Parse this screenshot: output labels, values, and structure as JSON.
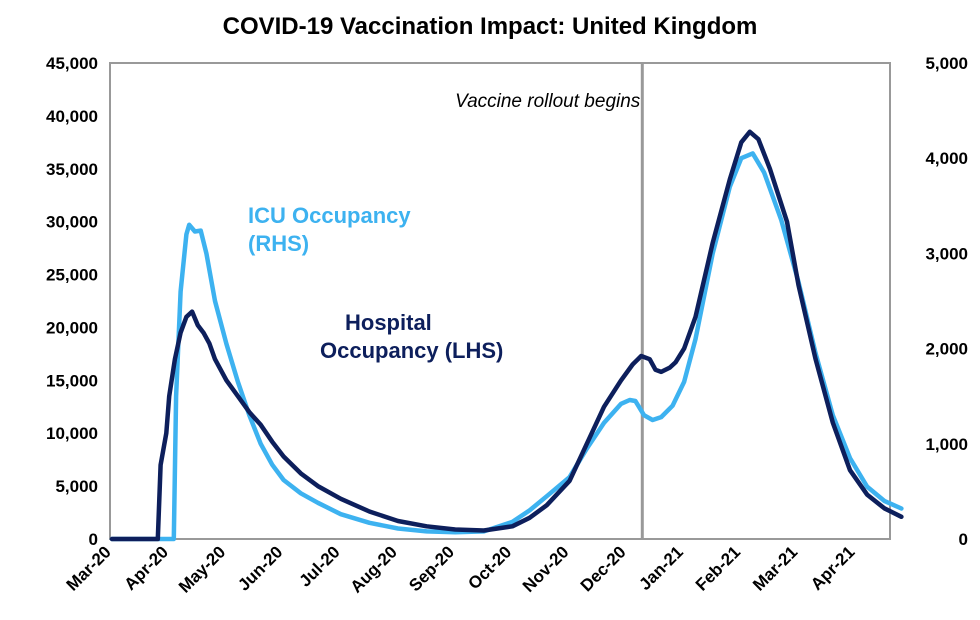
{
  "chart_data": {
    "type": "line",
    "title": "COVID-19 Vaccination Impact: United Kingdom",
    "x_ticks": [
      "Mar-20",
      "Apr-20",
      "May-20",
      "Jun-20",
      "Jul-20",
      "Aug-20",
      "Sep-20",
      "Oct-20",
      "Nov-20",
      "Dec-20",
      "Jan-21",
      "Feb-21",
      "Mar-21",
      "Apr-21"
    ],
    "x_range": [
      0,
      13.6
    ],
    "y_left": {
      "min": 0,
      "max": 45000,
      "ticks": [
        "0",
        "5,000",
        "10,000",
        "15,000",
        "20,000",
        "25,000",
        "30,000",
        "35,000",
        "40,000",
        "45,000"
      ]
    },
    "y_right": {
      "min": 0,
      "max": 5000,
      "ticks": [
        "0",
        "1,000",
        "2,000",
        "3,000",
        "4,000",
        "5,000"
      ]
    },
    "grid": false,
    "annotation": {
      "text": "Vaccine rollout begins",
      "x": 9.27
    },
    "series": [
      {
        "name": "Hospital Occupancy (LHS)",
        "label_lines": [
          "Hospital",
          "Occupancy (LHS)"
        ],
        "axis": "left",
        "color": "#0d1f5c",
        "points": [
          [
            0,
            0
          ],
          [
            0.8,
            0
          ],
          [
            0.85,
            7000
          ],
          [
            0.95,
            10000
          ],
          [
            1.0,
            13500
          ],
          [
            1.1,
            17000
          ],
          [
            1.2,
            19500
          ],
          [
            1.3,
            21000
          ],
          [
            1.4,
            21500
          ],
          [
            1.5,
            20200
          ],
          [
            1.6,
            19500
          ],
          [
            1.7,
            18500
          ],
          [
            1.8,
            17000
          ],
          [
            2.0,
            15000
          ],
          [
            2.2,
            13500
          ],
          [
            2.4,
            12000
          ],
          [
            2.6,
            10800
          ],
          [
            2.8,
            9200
          ],
          [
            3.0,
            7800
          ],
          [
            3.3,
            6200
          ],
          [
            3.6,
            5000
          ],
          [
            4.0,
            3800
          ],
          [
            4.5,
            2600
          ],
          [
            5.0,
            1700
          ],
          [
            5.5,
            1200
          ],
          [
            6.0,
            900
          ],
          [
            6.5,
            800
          ],
          [
            7.0,
            1200
          ],
          [
            7.3,
            2000
          ],
          [
            7.6,
            3200
          ],
          [
            8.0,
            5500
          ],
          [
            8.3,
            9000
          ],
          [
            8.6,
            12500
          ],
          [
            8.9,
            15000
          ],
          [
            9.1,
            16500
          ],
          [
            9.25,
            17300
          ],
          [
            9.4,
            17000
          ],
          [
            9.5,
            16000
          ],
          [
            9.6,
            15800
          ],
          [
            9.75,
            16200
          ],
          [
            9.85,
            16700
          ],
          [
            10.0,
            18000
          ],
          [
            10.2,
            21000
          ],
          [
            10.5,
            28000
          ],
          [
            10.8,
            34000
          ],
          [
            11.0,
            37500
          ],
          [
            11.15,
            38500
          ],
          [
            11.3,
            37800
          ],
          [
            11.5,
            35000
          ],
          [
            11.8,
            30000
          ],
          [
            12.0,
            24000
          ],
          [
            12.3,
            17000
          ],
          [
            12.6,
            11000
          ],
          [
            12.9,
            6500
          ],
          [
            13.2,
            4200
          ],
          [
            13.5,
            2900
          ],
          [
            13.8,
            2100
          ]
        ]
      },
      {
        "name": "ICU Occupancy (RHS)",
        "label_lines": [
          "ICU Occupancy",
          "(RHS)"
        ],
        "axis": "right",
        "color": "#3db2f0",
        "points": [
          [
            0,
            0
          ],
          [
            1.08,
            0
          ],
          [
            1.12,
            1500
          ],
          [
            1.2,
            2600
          ],
          [
            1.3,
            3200
          ],
          [
            1.35,
            3300
          ],
          [
            1.45,
            3230
          ],
          [
            1.55,
            3240
          ],
          [
            1.65,
            3000
          ],
          [
            1.8,
            2500
          ],
          [
            2.0,
            2050
          ],
          [
            2.2,
            1650
          ],
          [
            2.4,
            1300
          ],
          [
            2.6,
            1000
          ],
          [
            2.8,
            780
          ],
          [
            3.0,
            620
          ],
          [
            3.3,
            480
          ],
          [
            3.6,
            380
          ],
          [
            4.0,
            260
          ],
          [
            4.5,
            170
          ],
          [
            5.0,
            110
          ],
          [
            5.5,
            80
          ],
          [
            6.0,
            70
          ],
          [
            6.5,
            80
          ],
          [
            7.0,
            180
          ],
          [
            7.3,
            300
          ],
          [
            7.6,
            450
          ],
          [
            8.0,
            650
          ],
          [
            8.3,
            950
          ],
          [
            8.6,
            1220
          ],
          [
            8.9,
            1420
          ],
          [
            9.05,
            1460
          ],
          [
            9.15,
            1450
          ],
          [
            9.3,
            1300
          ],
          [
            9.45,
            1250
          ],
          [
            9.6,
            1280
          ],
          [
            9.8,
            1400
          ],
          [
            10.0,
            1650
          ],
          [
            10.2,
            2100
          ],
          [
            10.5,
            3000
          ],
          [
            10.8,
            3700
          ],
          [
            11.0,
            4000
          ],
          [
            11.2,
            4050
          ],
          [
            11.4,
            3850
          ],
          [
            11.7,
            3350
          ],
          [
            12.0,
            2700
          ],
          [
            12.3,
            1950
          ],
          [
            12.6,
            1300
          ],
          [
            12.9,
            850
          ],
          [
            13.2,
            550
          ],
          [
            13.5,
            400
          ],
          [
            13.8,
            320
          ]
        ]
      }
    ]
  }
}
